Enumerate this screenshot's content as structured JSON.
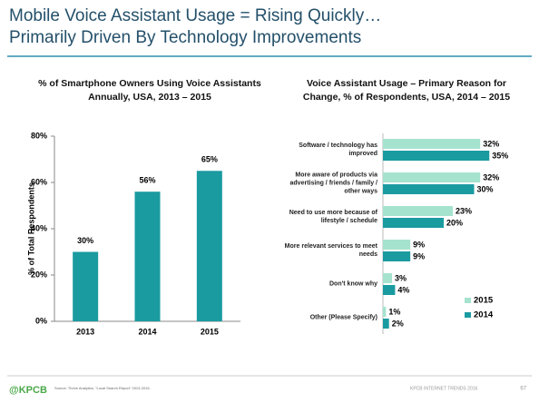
{
  "header": {
    "title": [
      "Mobile Voice Assistant Usage = Rising Quickly…",
      "Primarily Driven By Technology Improvements"
    ]
  },
  "chart_data": [
    {
      "type": "bar",
      "title": [
        "% of Smartphone Owners Using Voice Assistants",
        "Annually, USA, 2013 – 2015"
      ],
      "ylabel": "% of Total Respondents",
      "categories": [
        "2013",
        "2014",
        "2015"
      ],
      "values": [
        30,
        56,
        65
      ],
      "value_labels": [
        "30%",
        "56%",
        "65%"
      ],
      "color": "#1a9ba0",
      "ylim": [
        0,
        80
      ],
      "yticks": [
        {
          "value": 0,
          "label": "0%"
        },
        {
          "value": 20,
          "label": "20%"
        },
        {
          "value": 40,
          "label": "40%"
        },
        {
          "value": 60,
          "label": "60%"
        },
        {
          "value": 80,
          "label": "80%"
        }
      ]
    },
    {
      "type": "hbar",
      "title": [
        "Voice Assistant Usage – Primary Reason for",
        "Change, % of Respondents, USA, 2014 – 2015"
      ],
      "categories": [
        "Software / technology has improved",
        "More aware of products via advertising / friends / family / other ways",
        "Need to use more because of lifestyle / schedule",
        "More relevant services to meet needs",
        "Don't know why",
        "Other (Please Specify)"
      ],
      "series": [
        {
          "name": "2015",
          "color": "#a6e3cf",
          "values": [
            32,
            32,
            23,
            9,
            3,
            1
          ],
          "value_labels": [
            "32%",
            "32%",
            "23%",
            "9%",
            "3%",
            "1%"
          ]
        },
        {
          "name": "2014",
          "color": "#1a9ba0",
          "values": [
            35,
            30,
            20,
            9,
            4,
            2
          ],
          "value_labels": [
            "35%",
            "30%",
            "20%",
            "9%",
            "4%",
            "2%"
          ]
        }
      ],
      "xlim": [
        0,
        40
      ],
      "legend": "lower-right"
    }
  ],
  "footer": {
    "logo": "@KPCB",
    "source": "Source: Thrive Analytics, \"Local Search Report\" 2013-2015.",
    "brand": "KPCB INTERNET TRENDS 2016",
    "page": "67"
  }
}
